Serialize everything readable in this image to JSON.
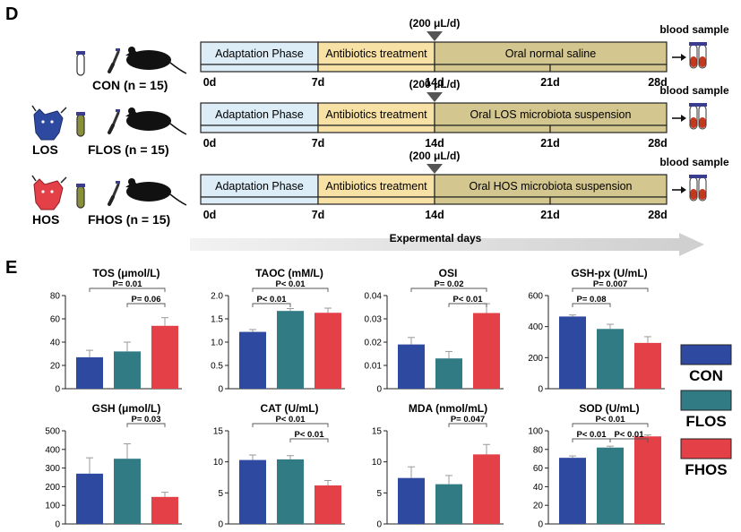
{
  "panel_d": {
    "label": "D",
    "dose_label": "(200 μL/d)",
    "blood_label": "blood sample",
    "axis_label": "Expermental days",
    "day_labels": [
      "0d",
      "7d",
      "14d",
      "21d",
      "28d"
    ],
    "groups": [
      {
        "id": "con",
        "name": "CON (n = 15)",
        "tag": "",
        "phases": [
          "Adaptation Phase",
          "Antibiotics treatment",
          "Oral normal saline"
        ]
      },
      {
        "id": "flos",
        "name": "FLOS (n = 15)",
        "tag": "LOS",
        "phases": [
          "Adaptation Phase",
          "Antibiotics treatment",
          "Oral LOS microbiota suspension"
        ]
      },
      {
        "id": "fhos",
        "name": "FHOS (n = 15)",
        "tag": "HOS",
        "phases": [
          "Adaptation Phase",
          "Antibiotics treatment",
          "Oral HOS microbiota suspension"
        ]
      }
    ],
    "colors": {
      "adaptation": "#dcedf7",
      "antibiotics": "#f7e1a5",
      "oral": "#d4c68f",
      "blood": "#c4381f",
      "tube_cap": "#3a3d8f"
    }
  },
  "panel_e": {
    "label": "E",
    "legend": [
      {
        "name": "CON",
        "color": "#2e4aa0"
      },
      {
        "name": "FLOS",
        "color": "#317b85"
      },
      {
        "name": "FHOS",
        "color": "#e34048"
      }
    ]
  },
  "chart_data": [
    {
      "type": "bar",
      "title": "TOS (μmol/L)",
      "categories": [
        "CON",
        "FLOS",
        "FHOS"
      ],
      "values": [
        27,
        32,
        54
      ],
      "errors": [
        6,
        8,
        7
      ],
      "ylim": [
        0,
        80
      ],
      "yticks": [
        "0",
        "20",
        "40",
        "60",
        "80"
      ],
      "ytick_values": [
        0,
        20,
        40,
        60,
        80
      ],
      "annotations": [
        {
          "text": "P= 0.01",
          "from": 0,
          "to": 2,
          "level": 1
        },
        {
          "text": "P= 0.06",
          "from": 1,
          "to": 2,
          "level": 0
        }
      ]
    },
    {
      "type": "bar",
      "title": "TAOC (mM/L)",
      "categories": [
        "CON",
        "FLOS",
        "FHOS"
      ],
      "values": [
        1.22,
        1.67,
        1.63
      ],
      "errors": [
        0.05,
        0.05,
        0.1
      ],
      "ylim": [
        0,
        2.0
      ],
      "yticks": [
        "0",
        "0.5",
        "1.0",
        "1.5",
        "2.0"
      ],
      "ytick_values": [
        0,
        0.5,
        1.0,
        1.5,
        2.0
      ],
      "annotations": [
        {
          "text": "P< 0.01",
          "from": 0,
          "to": 1,
          "level": 0
        },
        {
          "text": "P< 0.01",
          "from": 0,
          "to": 2,
          "level": 1
        }
      ]
    },
    {
      "type": "bar",
      "title": "OSI",
      "categories": [
        "CON",
        "FLOS",
        "FHOS"
      ],
      "values": [
        0.019,
        0.013,
        0.0325
      ],
      "errors": [
        0.003,
        0.003,
        0.004
      ],
      "ylim": [
        0,
        0.04
      ],
      "yticks": [
        "0",
        "0.01",
        "0.02",
        "0.03",
        "0.04"
      ],
      "ytick_values": [
        0,
        0.01,
        0.02,
        0.03,
        0.04
      ],
      "annotations": [
        {
          "text": "P= 0.02",
          "from": 0,
          "to": 2,
          "level": 1
        },
        {
          "text": "P< 0.01",
          "from": 1,
          "to": 2,
          "level": 0
        }
      ]
    },
    {
      "type": "bar",
      "title": "GSH-px (U/mL)",
      "categories": [
        "CON",
        "FLOS",
        "FHOS"
      ],
      "values": [
        465,
        385,
        295
      ],
      "errors": [
        10,
        30,
        40
      ],
      "ylim": [
        0,
        600
      ],
      "yticks": [
        "0",
        "200",
        "400",
        "600"
      ],
      "ytick_values": [
        0,
        200,
        400,
        600
      ],
      "annotations": [
        {
          "text": "P= 0.08",
          "from": 0,
          "to": 1,
          "level": 0
        },
        {
          "text": "P= 0.007",
          "from": 0,
          "to": 2,
          "level": 1
        }
      ]
    },
    {
      "type": "bar",
      "title": "GSH  (μmol/L)",
      "categories": [
        "CON",
        "FLOS",
        "FHOS"
      ],
      "values": [
        270,
        350,
        145
      ],
      "errors": [
        85,
        80,
        25
      ],
      "ylim": [
        0,
        500
      ],
      "yticks": [
        "0",
        "100",
        "200",
        "300",
        "400",
        "500"
      ],
      "ytick_values": [
        0,
        100,
        200,
        300,
        400,
        500
      ],
      "annotations": [
        {
          "text": "P= 0.03",
          "from": 1,
          "to": 2,
          "level": 1
        }
      ]
    },
    {
      "type": "bar",
      "title": "CAT (U/mL)",
      "categories": [
        "CON",
        "FLOS",
        "FHOS"
      ],
      "values": [
        10.3,
        10.4,
        6.2
      ],
      "errors": [
        0.8,
        0.6,
        0.8
      ],
      "ylim": [
        0,
        15
      ],
      "yticks": [
        "0",
        "5",
        "10",
        "15"
      ],
      "ytick_values": [
        0,
        5,
        10,
        15
      ],
      "annotations": [
        {
          "text": "P< 0.01",
          "from": 0,
          "to": 2,
          "level": 1
        },
        {
          "text": "P< 0.01",
          "from": 1,
          "to": 2,
          "level": 0
        }
      ]
    },
    {
      "type": "bar",
      "title": "MDA (nmol/mL)",
      "categories": [
        "CON",
        "FLOS",
        "FHOS"
      ],
      "values": [
        7.4,
        6.4,
        11.2
      ],
      "errors": [
        1.8,
        1.4,
        1.6
      ],
      "ylim": [
        0,
        15
      ],
      "yticks": [
        "0",
        "5",
        "10",
        "15"
      ],
      "ytick_values": [
        0,
        5,
        10,
        15
      ],
      "annotations": [
        {
          "text": "P= 0.047",
          "from": 1,
          "to": 2,
          "level": 1
        }
      ]
    },
    {
      "type": "bar",
      "title": "SOD (U/mL)",
      "categories": [
        "CON",
        "FLOS",
        "FHOS"
      ],
      "values": [
        71,
        82,
        94
      ],
      "errors": [
        2,
        1.5,
        1.5
      ],
      "ylim": [
        0,
        100
      ],
      "yticks": [
        "0",
        "20",
        "40",
        "60",
        "80",
        "100"
      ],
      "ytick_values": [
        0,
        20,
        40,
        60,
        80,
        100
      ],
      "annotations": [
        {
          "text": "P< 0.01",
          "from": 0,
          "to": 1,
          "level": 0
        },
        {
          "text": "P< 0.01",
          "from": 1,
          "to": 2,
          "level": 0
        },
        {
          "text": "P< 0.01",
          "from": 0,
          "to": 2,
          "level": 1
        }
      ]
    }
  ]
}
